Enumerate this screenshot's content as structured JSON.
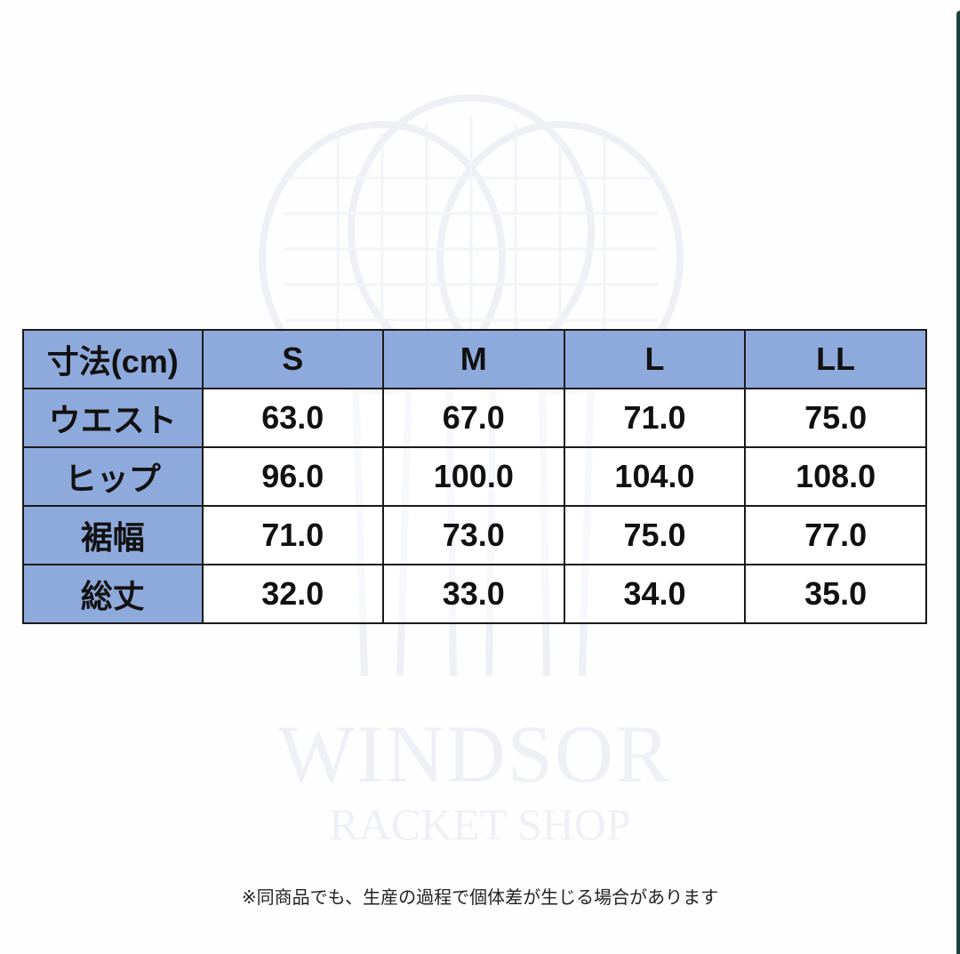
{
  "colors": {
    "header": "#8eaadc",
    "border": "#1a1a1a",
    "watermark": "#eef0f6"
  },
  "watermark": {
    "line1": "WINDSOR",
    "line2": "RACKET SHOP",
    "icon": "tennis-rackets-logo"
  },
  "table": {
    "header": [
      "寸法(cm)",
      "S",
      "M",
      "L",
      "LL"
    ],
    "rows": [
      {
        "label": "ウエスト",
        "values": [
          "63.0",
          "67.0",
          "71.0",
          "75.0"
        ]
      },
      {
        "label": "ヒップ",
        "values": [
          "96.0",
          "100.0",
          "104.0",
          "108.0"
        ]
      },
      {
        "label": "裾幅",
        "values": [
          "71.0",
          "73.0",
          "75.0",
          "77.0"
        ]
      },
      {
        "label": "総丈",
        "values": [
          "32.0",
          "33.0",
          "34.0",
          "35.0"
        ]
      }
    ]
  },
  "note": "※同商品でも、生産の過程で個体差が生じる場合があります"
}
